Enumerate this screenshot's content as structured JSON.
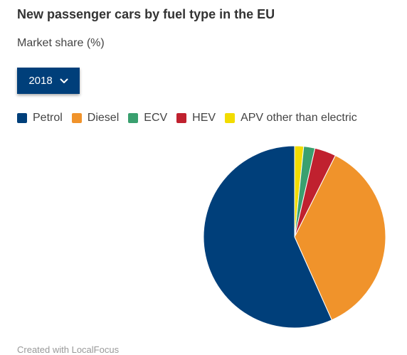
{
  "header": {
    "title": "New passenger cars by fuel type in the EU",
    "subtitle": "Market share (%)"
  },
  "year_select": {
    "value": "2018"
  },
  "colors": {
    "petrol": "#003f7a",
    "diesel": "#f0932b",
    "ecv": "#3aa06f",
    "hev": "#c0212f",
    "apv": "#f2dc00"
  },
  "chart_data": {
    "type": "pie",
    "categories": [
      "Petrol",
      "Diesel",
      "ECV",
      "HEV",
      "APV other than electric"
    ],
    "values": [
      56.7,
      35.9,
      2.0,
      3.8,
      1.6
    ],
    "colors": [
      "#003f7a",
      "#f0932b",
      "#3aa06f",
      "#c0212f",
      "#f2dc00"
    ],
    "legend": "top-left"
  },
  "credit": "Created with LocalFocus"
}
